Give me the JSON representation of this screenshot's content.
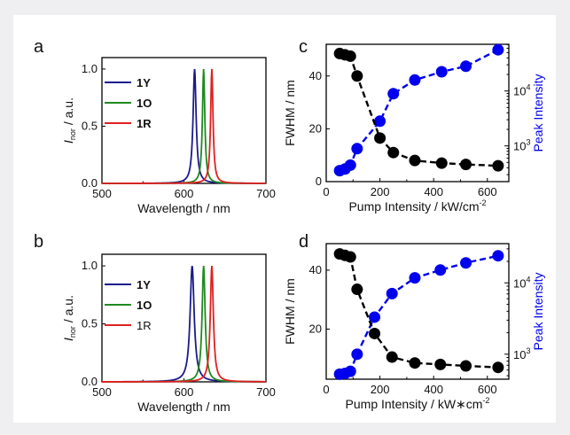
{
  "chart_data": [
    {
      "panel": "a",
      "type": "line",
      "xlabel": "Wavelength / nm",
      "ylabel_main": "I",
      "ylabel_sub": "nor",
      "ylabel_rest": " / a.u.",
      "xlim": [
        500,
        700
      ],
      "ylim": [
        0,
        1.1
      ],
      "xticks": [
        "500",
        "600",
        "700"
      ],
      "yticks": [
        "0.0",
        "0.5",
        "1.0"
      ],
      "legend_position": "top-left",
      "series": [
        {
          "name": "1Y",
          "color": "#1a1a8c",
          "bold": true,
          "peak": 613,
          "width": 4.5
        },
        {
          "name": "1O",
          "color": "#1f8a1f",
          "bold": true,
          "peak": 624,
          "width": 3.5
        },
        {
          "name": "1R",
          "color": "#e02020",
          "bold": true,
          "peak": 634,
          "width": 3.5
        }
      ]
    },
    {
      "panel": "b",
      "type": "line",
      "xlabel": "Wavelength / nm",
      "ylabel_main": "I",
      "ylabel_sub": "nor",
      "ylabel_rest": " / a.u.",
      "xlim": [
        500,
        700
      ],
      "ylim": [
        0,
        1.1
      ],
      "xticks": [
        "500",
        "600",
        "700"
      ],
      "yticks": [
        "0.0",
        "0.5",
        "1.0"
      ],
      "legend_position": "top-left",
      "series": [
        {
          "name": "1Y",
          "color": "#1a1a8c",
          "bold": true,
          "peak": 610,
          "width": 6
        },
        {
          "name": "1O",
          "color": "#1f8a1f",
          "bold": true,
          "peak": 624,
          "width": 4.5
        },
        {
          "name": "1R",
          "color": "#e02020",
          "bold": false,
          "peak": 634,
          "width": 4.5
        }
      ]
    },
    {
      "panel": "c",
      "type": "scatter",
      "xlabel": "Pump Intensity / kW/cm",
      "xlabel_sup": "-2",
      "ylabel": "FWHM / nm",
      "ylabel2": "Peak Intensity",
      "xlim": [
        0,
        680
      ],
      "ylim": [
        0,
        52
      ],
      "y2_log_range": [
        2.35,
        4.85
      ],
      "xticks": [
        "0",
        "200",
        "400",
        "600"
      ],
      "yticks": [
        "0",
        "20",
        "40"
      ],
      "y2ticks": [
        "3",
        "4"
      ],
      "fwhm_color": "#000000",
      "peak_color": "#0000ee",
      "x": [
        50,
        70,
        90,
        115,
        200,
        250,
        330,
        430,
        520,
        640
      ],
      "fwhm": [
        48.5,
        48,
        47.5,
        40,
        16.5,
        11,
        8,
        7,
        6.5,
        6
      ],
      "peak_log": [
        2.55,
        2.58,
        2.65,
        2.95,
        3.45,
        3.95,
        4.2,
        4.35,
        4.45,
        4.75
      ]
    },
    {
      "panel": "d",
      "type": "scatter",
      "xlabel": "Pump Intensity / kW∗cm",
      "xlabel_sup": "-2",
      "ylabel": "FWHM / nm",
      "ylabel2": "Peak Intensity",
      "xlim": [
        0,
        680
      ],
      "ylim": [
        3,
        49
      ],
      "y2_log_range": [
        2.65,
        4.55
      ],
      "xticks": [
        "0",
        "200",
        "400",
        "600"
      ],
      "yticks": [
        "20",
        "40"
      ],
      "y2ticks": [
        "3",
        "4"
      ],
      "fwhm_color": "#000000",
      "peak_color": "#0000ee",
      "x": [
        50,
        70,
        90,
        115,
        180,
        245,
        330,
        425,
        520,
        640
      ],
      "fwhm": [
        45.5,
        45,
        44.5,
        33.5,
        18.5,
        10.5,
        8.5,
        8,
        7.5,
        7
      ],
      "peak_log": [
        2.72,
        2.73,
        2.76,
        3.0,
        3.52,
        3.85,
        4.07,
        4.18,
        4.28,
        4.38
      ]
    }
  ]
}
